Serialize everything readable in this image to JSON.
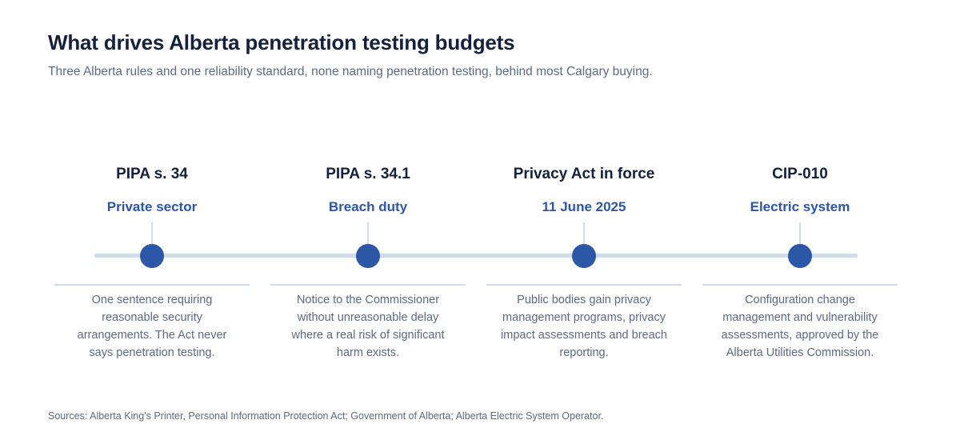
{
  "header": {
    "title": "What drives Alberta penetration testing budgets",
    "subtitle": "Three Alberta rules and one reliability standard, none naming penetration testing, behind most Calgary buying."
  },
  "timeline": {
    "line_color": "#cfdcee",
    "marker_color": "#2c56a6",
    "items": [
      {
        "heading": "PIPA s. 34",
        "tag": "Private sector",
        "description": "One sentence requiring reasonable security arrangements. The Act never says penetration testing."
      },
      {
        "heading": "PIPA s. 34.1",
        "tag": "Breach duty",
        "description": "Notice to the Commissioner without unreasonable delay where a real risk of significant harm exists."
      },
      {
        "heading": "Privacy Act in force",
        "tag": "11 June 2025",
        "description": "Public bodies gain privacy management programs, privacy impact assessments and breach reporting."
      },
      {
        "heading": "CIP-010",
        "tag": "Electric system",
        "description": "Configuration change management and vulnerability assessments, approved by the Alberta Utilities Commission."
      }
    ]
  },
  "footer": {
    "sources": "Sources: Alberta King's Printer, Personal Information Protection Act; Government of Alberta; Alberta Electric System Operator."
  }
}
